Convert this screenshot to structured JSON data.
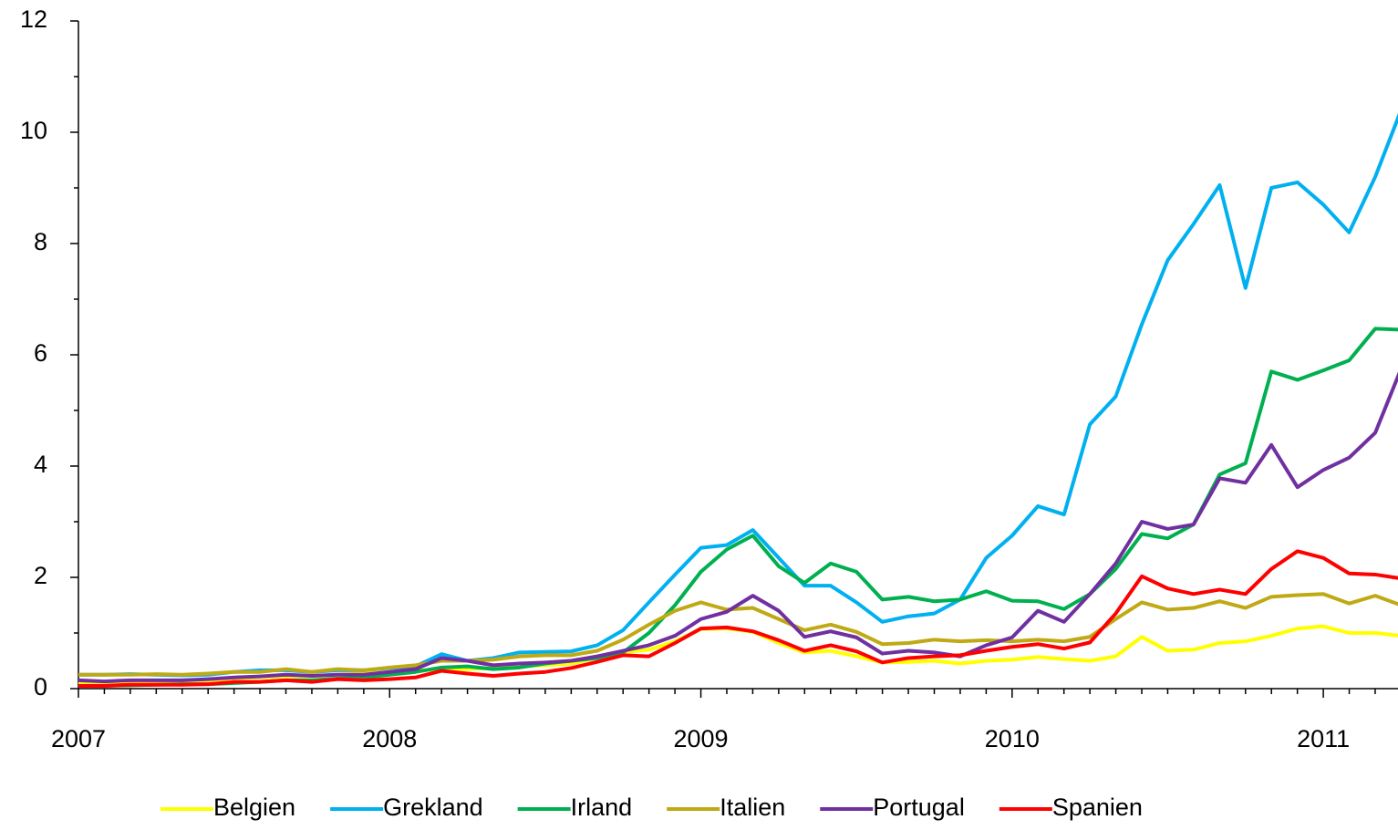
{
  "chart_data": {
    "type": "line",
    "x": [
      2007,
      2007.083,
      2007.167,
      2007.25,
      2007.333,
      2007.417,
      2007.5,
      2007.583,
      2007.667,
      2007.75,
      2007.833,
      2007.917,
      2008,
      2008.083,
      2008.167,
      2008.25,
      2008.333,
      2008.417,
      2008.5,
      2008.583,
      2008.667,
      2008.75,
      2008.833,
      2008.917,
      2009,
      2009.083,
      2009.167,
      2009.25,
      2009.333,
      2009.417,
      2009.5,
      2009.583,
      2009.667,
      2009.75,
      2009.833,
      2009.917,
      2010,
      2010.083,
      2010.167,
      2010.25,
      2010.333,
      2010.417,
      2010.5,
      2010.583,
      2010.667,
      2010.75,
      2010.833,
      2010.917,
      2011,
      2011.083,
      2011.167,
      2011.25
    ],
    "xlim": [
      2007,
      2011.24
    ],
    "xticks": [
      2007,
      2008,
      2009,
      2010,
      2011
    ],
    "ylim": [
      0,
      12
    ],
    "yticks": [
      0,
      2,
      4,
      6,
      8,
      10,
      12
    ],
    "series": [
      {
        "name": "Belgien",
        "color": "#ffff00",
        "values": [
          0.1,
          0.1,
          0.12,
          0.13,
          0.13,
          0.15,
          0.18,
          0.2,
          0.22,
          0.22,
          0.25,
          0.27,
          0.3,
          0.32,
          0.35,
          0.35,
          0.37,
          0.4,
          0.42,
          0.45,
          0.55,
          0.65,
          0.7,
          0.85,
          1.07,
          1.08,
          1.02,
          0.82,
          0.65,
          0.68,
          0.58,
          0.47,
          0.48,
          0.5,
          0.45,
          0.5,
          0.52,
          0.57,
          0.53,
          0.5,
          0.58,
          0.93,
          0.68,
          0.7,
          0.82,
          0.85,
          0.95,
          1.08,
          1.12,
          1.0,
          1.0,
          0.95
        ]
      },
      {
        "name": "Grekland",
        "color": "#00b0f0",
        "values": [
          0.25,
          0.25,
          0.26,
          0.25,
          0.24,
          0.25,
          0.3,
          0.33,
          0.33,
          0.3,
          0.33,
          0.33,
          0.37,
          0.4,
          0.62,
          0.5,
          0.55,
          0.65,
          0.66,
          0.67,
          0.78,
          1.05,
          1.55,
          2.05,
          2.53,
          2.58,
          2.85,
          2.35,
          1.85,
          1.85,
          1.55,
          1.2,
          1.3,
          1.35,
          1.6,
          2.35,
          2.75,
          3.28,
          3.13,
          4.75,
          5.25,
          6.55,
          7.7,
          8.35,
          9.05,
          7.2,
          9.0,
          9.1,
          8.7,
          8.2,
          9.2,
          10.4
        ]
      },
      {
        "name": "Irland",
        "color": "#00b050",
        "values": [
          0.05,
          0.05,
          0.06,
          0.07,
          0.08,
          0.08,
          0.1,
          0.12,
          0.15,
          0.15,
          0.18,
          0.2,
          0.25,
          0.3,
          0.38,
          0.4,
          0.35,
          0.38,
          0.45,
          0.5,
          0.55,
          0.65,
          1.0,
          1.5,
          2.1,
          2.5,
          2.75,
          2.2,
          1.9,
          2.25,
          2.1,
          1.6,
          1.65,
          1.57,
          1.6,
          1.75,
          1.58,
          1.57,
          1.43,
          1.7,
          2.15,
          2.78,
          2.7,
          2.95,
          3.85,
          4.05,
          5.7,
          5.55,
          5.72,
          5.9,
          6.47,
          6.45
        ]
      },
      {
        "name": "Italien",
        "color": "#bfa914",
        "values": [
          0.25,
          0.25,
          0.25,
          0.26,
          0.25,
          0.27,
          0.3,
          0.3,
          0.35,
          0.3,
          0.35,
          0.33,
          0.38,
          0.42,
          0.5,
          0.5,
          0.52,
          0.58,
          0.6,
          0.6,
          0.68,
          0.88,
          1.15,
          1.4,
          1.55,
          1.42,
          1.45,
          1.25,
          1.05,
          1.15,
          1.02,
          0.8,
          0.82,
          0.88,
          0.85,
          0.87,
          0.85,
          0.88,
          0.85,
          0.93,
          1.25,
          1.55,
          1.42,
          1.45,
          1.57,
          1.45,
          1.65,
          1.68,
          1.7,
          1.53,
          1.67,
          1.5
        ]
      },
      {
        "name": "Portugal",
        "color": "#7030a0",
        "values": [
          0.15,
          0.13,
          0.15,
          0.15,
          0.15,
          0.17,
          0.2,
          0.22,
          0.25,
          0.23,
          0.25,
          0.25,
          0.3,
          0.35,
          0.55,
          0.5,
          0.42,
          0.45,
          0.47,
          0.5,
          0.58,
          0.68,
          0.78,
          0.95,
          1.25,
          1.38,
          1.67,
          1.4,
          0.93,
          1.03,
          0.92,
          0.63,
          0.68,
          0.65,
          0.58,
          0.78,
          0.92,
          1.4,
          1.2,
          1.7,
          2.25,
          3.0,
          2.87,
          2.95,
          3.78,
          3.7,
          4.38,
          3.62,
          3.93,
          4.15,
          4.6,
          5.75
        ]
      },
      {
        "name": "Spanien",
        "color": "#ff0000",
        "values": [
          0.05,
          0.05,
          0.07,
          0.07,
          0.07,
          0.08,
          0.12,
          0.12,
          0.15,
          0.12,
          0.17,
          0.15,
          0.17,
          0.2,
          0.32,
          0.27,
          0.23,
          0.27,
          0.3,
          0.37,
          0.48,
          0.6,
          0.58,
          0.82,
          1.08,
          1.1,
          1.03,
          0.87,
          0.68,
          0.78,
          0.67,
          0.47,
          0.55,
          0.58,
          0.6,
          0.68,
          0.75,
          0.8,
          0.72,
          0.83,
          1.35,
          2.02,
          1.8,
          1.7,
          1.78,
          1.7,
          2.15,
          2.47,
          2.35,
          2.07,
          2.05,
          1.98
        ]
      }
    ],
    "legend": "bottom"
  }
}
